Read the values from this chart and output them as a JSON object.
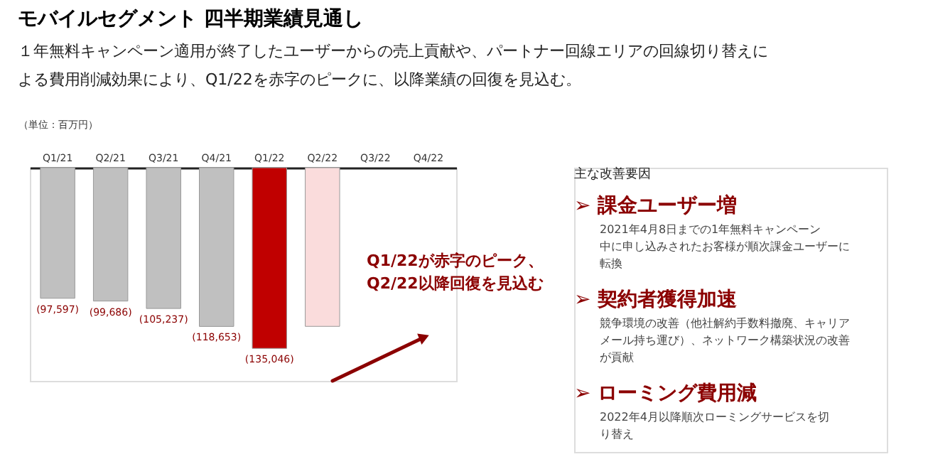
{
  "chart_data": [
    {
      "type": "bar",
      "title": "モバイルセグメント 四半期業績見通し",
      "subtitle": "１年無料キャンペーン適用が終了したユーザーからの売上貢献や、パートナー回線エリアの回線切り替えによる費用削減効果により、Q1/22を赤字のピークに、以降業績の回復を見込む。",
      "categories": [
        "Q1/21",
        "Q2/21",
        "Q3/21",
        "Q4/21",
        "Q1/22",
        "Q2/22",
        "Q3/22",
        "Q4/22"
      ],
      "values": [
        -97597,
        -99686,
        -105237,
        -118653,
        -135046,
        -118600,
        null,
        null
      ],
      "colors": [
        "#c0c0c0",
        "#c0c0c0",
        "#c0c0c0",
        "#c0c0c0",
        "#c00000",
        "#fadcdc",
        null,
        null
      ],
      "value_labels": [
        "(97,597)",
        "(99,686)",
        "(105,237)",
        "(118,653)",
        "(135,046)",
        null,
        null,
        null
      ],
      "tick_labels": "x",
      "annotations": [
        "（単位：百万円）",
        "Q1/22が赤字のピーク、\nQ2/22以降回復を見込む"
      ]
    },
    {
      "type": "other",
      "annotations": [
        "主な改善要因",
        "➢ 課金ユーザー増",
        "2021年4月8日までの1年無料キャンペーン中に申し込みされたお客様が順次課金ユーザーに転換",
        "➢ 契約者獲得加速",
        "競争環境の改善（他社解約手数料撤廃、キャリアメール持ち運び）、ネットワーク構築状況の改善が貢献",
        "➢ ローミング費用減",
        "2022年4月以降順次ローミングサービスを切り替え"
      ]
    }
  ]
}
